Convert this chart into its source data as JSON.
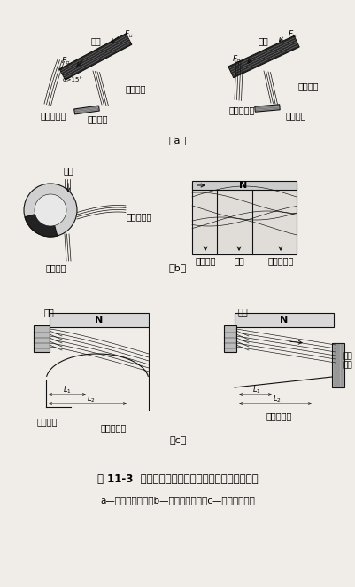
{
  "title": "图 11-3  物料在不同情况下按磁性分离时的不同路径",
  "caption_line2": "a—磁性矿粒偏离；b—磁性矿粒吸住；c—磁性矿粒吸出",
  "label_a": "（a）",
  "label_b": "（b）",
  "label_c": "（c）",
  "bg_color": "#f0ede8",
  "draw_color": "#111111",
  "fig_width": 4.02,
  "fig_height": 6.62,
  "dpi": 100
}
